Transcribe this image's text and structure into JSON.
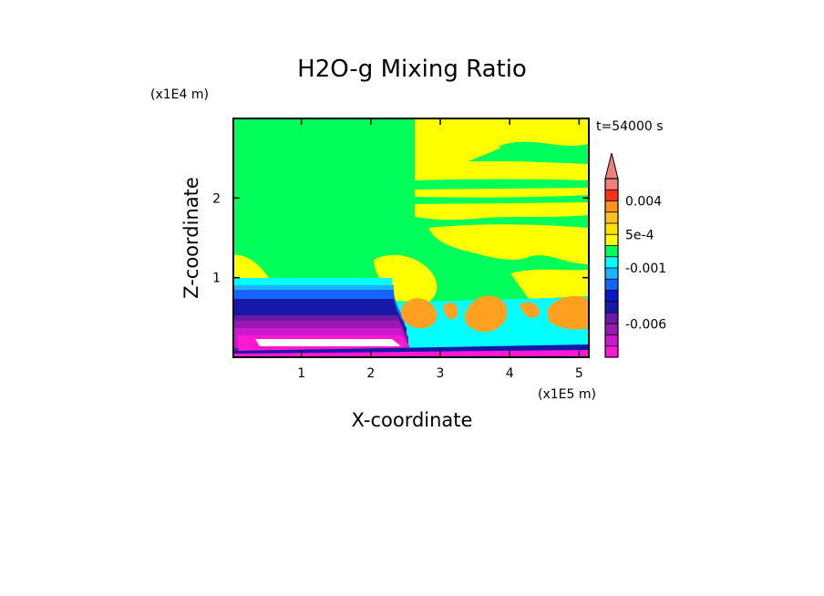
{
  "chart_data": {
    "type": "heatmap",
    "title": "H2O-g Mixing Ratio",
    "xlabel": "X-coordinate",
    "ylabel": "Z-coordinate",
    "x_unit": "(x1E5 m)",
    "y_unit": "(x1E4 m)",
    "time_label": "t=54000 s",
    "xlim": [
      0.02,
      5.14
    ],
    "ylim": [
      0,
      3.0
    ],
    "x_ticks": [
      "1",
      "2",
      "3",
      "4",
      "5"
    ],
    "x_tick_values": [
      1,
      2,
      3,
      4,
      5
    ],
    "y_ticks": [
      "1",
      "2"
    ],
    "y_tick_values": [
      1,
      2
    ],
    "grid": false,
    "colorbar": {
      "labels": [
        {
          "text": "0.004",
          "value": 0.004
        },
        {
          "text": "5e-4",
          "value": 0.0005
        },
        {
          "text": "-0.001",
          "value": -0.001
        },
        {
          "text": "-0.006",
          "value": -0.006
        }
      ],
      "levels": [
        -0.009,
        -0.008,
        -0.007,
        -0.006,
        -0.005,
        -0.004,
        -0.003,
        -0.002,
        -0.001,
        -0.0005,
        0.0,
        0.0005,
        0.001,
        0.002,
        0.004,
        0.006,
        0.008
      ],
      "colors": [
        "#ff18d2",
        "#cc18cc",
        "#9a18b4",
        "#6c18a4",
        "#1818a8",
        "#0a14c8",
        "#1464ff",
        "#1cb4ff",
        "#00ffff",
        "#00ff5a",
        "#ffff00",
        "#ffe000",
        "#ffc020",
        "#ff9020",
        "#ff3218",
        "#f08080"
      ],
      "extend": "max"
    },
    "dominant_regions": [
      {
        "region": "upper domain",
        "value_range": [
          -0.0005,
          0.0
        ],
        "color": "#00ff5a"
      },
      {
        "region": "upper right bands",
        "value_range": [
          0.0,
          0.0005
        ],
        "color": "#ffff00"
      },
      {
        "region": "lower left layers",
        "value_range": [
          -0.009,
          -0.001
        ],
        "color": "#1818a8"
      },
      {
        "region": "lower right convective cells",
        "value_range": [
          0.0005,
          0.002
        ],
        "color": "#ffa020"
      }
    ]
  }
}
